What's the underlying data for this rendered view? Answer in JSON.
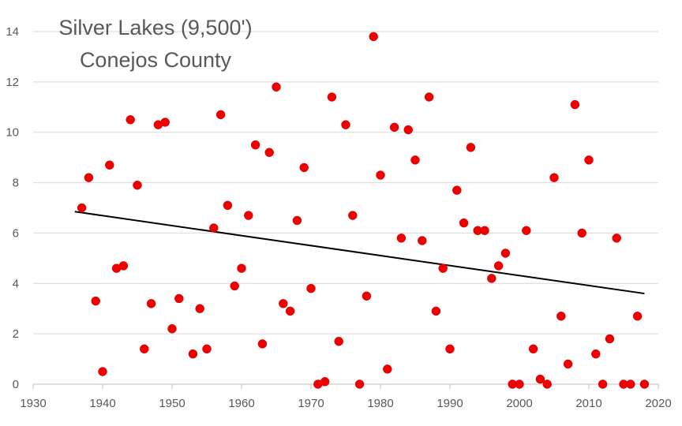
{
  "title_lines": [
    "Silver Lakes (9,500')",
    "Conejos County"
  ],
  "chart_data": {
    "type": "scatter",
    "title": "Silver Lakes (9,500') Conejos County",
    "xlabel": "",
    "ylabel": "",
    "xlim": [
      1930,
      2020
    ],
    "ylim": [
      0,
      14
    ],
    "x_ticks": [
      1930,
      1940,
      1950,
      1960,
      1970,
      1980,
      1990,
      2000,
      2010,
      2020
    ],
    "y_ticks": [
      0,
      2,
      4,
      6,
      8,
      10,
      12,
      14
    ],
    "grid": "horizontal",
    "legend": "none",
    "marker_color": "#ee0000",
    "trendline": {
      "type": "linear",
      "x": [
        1936,
        2018
      ],
      "y": [
        6.85,
        3.6
      ],
      "color": "#000000"
    },
    "series": [
      {
        "points": [
          [
            1937,
            7.0
          ],
          [
            1938,
            8.2
          ],
          [
            1939,
            3.3
          ],
          [
            1940,
            0.5
          ],
          [
            1941,
            8.7
          ],
          [
            1942,
            4.6
          ],
          [
            1943,
            4.7
          ],
          [
            1944,
            10.5
          ],
          [
            1945,
            7.9
          ],
          [
            1946,
            1.4
          ],
          [
            1947,
            3.2
          ],
          [
            1948,
            10.3
          ],
          [
            1949,
            10.4
          ],
          [
            1950,
            2.2
          ],
          [
            1951,
            3.4
          ],
          [
            1953,
            1.2
          ],
          [
            1954,
            3.0
          ],
          [
            1955,
            1.4
          ],
          [
            1956,
            6.2
          ],
          [
            1957,
            10.7
          ],
          [
            1958,
            7.1
          ],
          [
            1959,
            3.9
          ],
          [
            1960,
            4.6
          ],
          [
            1961,
            6.7
          ],
          [
            1962,
            9.5
          ],
          [
            1963,
            1.6
          ],
          [
            1964,
            9.2
          ],
          [
            1965,
            11.8
          ],
          [
            1966,
            3.2
          ],
          [
            1967,
            2.9
          ],
          [
            1968,
            6.5
          ],
          [
            1969,
            8.6
          ],
          [
            1970,
            3.8
          ],
          [
            1971,
            0.0
          ],
          [
            1972,
            0.1
          ],
          [
            1973,
            11.4
          ],
          [
            1974,
            1.7
          ],
          [
            1975,
            10.3
          ],
          [
            1976,
            6.7
          ],
          [
            1977,
            0.0
          ],
          [
            1978,
            3.5
          ],
          [
            1979,
            13.8
          ],
          [
            1980,
            8.3
          ],
          [
            1981,
            0.6
          ],
          [
            1982,
            10.2
          ],
          [
            1983,
            5.8
          ],
          [
            1984,
            10.1
          ],
          [
            1985,
            8.9
          ],
          [
            1986,
            5.7
          ],
          [
            1987,
            11.4
          ],
          [
            1988,
            2.9
          ],
          [
            1989,
            4.6
          ],
          [
            1990,
            1.4
          ],
          [
            1991,
            7.7
          ],
          [
            1992,
            6.4
          ],
          [
            1993,
            9.4
          ],
          [
            1994,
            6.1
          ],
          [
            1995,
            6.1
          ],
          [
            1996,
            4.2
          ],
          [
            1997,
            4.7
          ],
          [
            1998,
            5.2
          ],
          [
            1999,
            0.0
          ],
          [
            2000,
            0.0
          ],
          [
            2001,
            6.1
          ],
          [
            2002,
            1.4
          ],
          [
            2003,
            0.2
          ],
          [
            2004,
            0.0
          ],
          [
            2005,
            8.2
          ],
          [
            2006,
            2.7
          ],
          [
            2007,
            0.8
          ],
          [
            2008,
            11.1
          ],
          [
            2009,
            6.0
          ],
          [
            2010,
            8.9
          ],
          [
            2011,
            1.2
          ],
          [
            2012,
            0.0
          ],
          [
            2013,
            1.8
          ],
          [
            2014,
            5.8
          ],
          [
            2015,
            0.0
          ],
          [
            2016,
            0.0
          ],
          [
            2017,
            2.7
          ],
          [
            2018,
            0.0
          ]
        ]
      }
    ]
  }
}
